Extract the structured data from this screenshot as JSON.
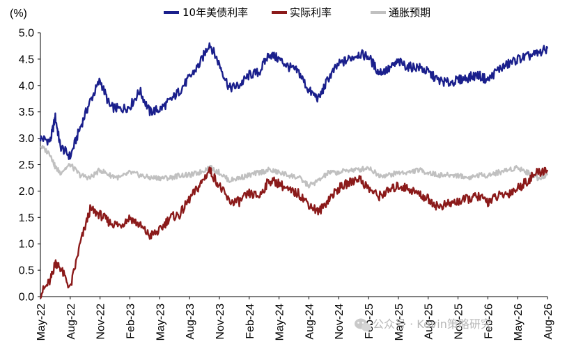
{
  "chart_data": {
    "type": "line",
    "unit_label": "(%)",
    "ylim": [
      0.0,
      5.0
    ],
    "y_ticks": [
      "0.0",
      "0.5",
      "1.0",
      "1.5",
      "2.0",
      "2.5",
      "3.0",
      "3.5",
      "4.0",
      "4.5",
      "5.0"
    ],
    "x_range": [
      "2022-05",
      "2026-08"
    ],
    "x_ticks": [
      "May-22",
      "Aug-22",
      "Nov-22",
      "Feb-23",
      "May-23",
      "Aug-23",
      "Nov-23",
      "Feb-24",
      "May-24",
      "Aug-24",
      "Nov-24",
      "Feb-25",
      "May-25",
      "Aug-25",
      "Nov-25",
      "Feb-26",
      "May-26",
      "Aug-26"
    ],
    "legend_position": "top-center",
    "grid": false,
    "series": [
      {
        "name": "10年美债利率",
        "color": "#1a1f8c",
        "points": [
          [
            "2022-05",
            3.0
          ],
          [
            "2022-06",
            2.95
          ],
          [
            "2022-06",
            3.4
          ],
          [
            "2022-07",
            2.85
          ],
          [
            "2022-08",
            2.65
          ],
          [
            "2022-09",
            3.2
          ],
          [
            "2022-10",
            3.7
          ],
          [
            "2022-11",
            4.1
          ],
          [
            "2022-12",
            3.6
          ],
          [
            "2023-01",
            3.55
          ],
          [
            "2023-02",
            3.6
          ],
          [
            "2023-03",
            3.9
          ],
          [
            "2023-04",
            3.5
          ],
          [
            "2023-05",
            3.55
          ],
          [
            "2023-06",
            3.7
          ],
          [
            "2023-07",
            3.9
          ],
          [
            "2023-08",
            4.15
          ],
          [
            "2023-09",
            4.4
          ],
          [
            "2023-10",
            4.8
          ],
          [
            "2023-11",
            4.4
          ],
          [
            "2023-12",
            3.95
          ],
          [
            "2024-01",
            4.0
          ],
          [
            "2024-02",
            4.2
          ],
          [
            "2024-03",
            4.25
          ],
          [
            "2024-04",
            4.6
          ],
          [
            "2024-05",
            4.5
          ],
          [
            "2024-06",
            4.35
          ],
          [
            "2024-07",
            4.25
          ],
          [
            "2024-08",
            3.9
          ],
          [
            "2024-09",
            3.75
          ],
          [
            "2024-10",
            4.15
          ],
          [
            "2024-11",
            4.4
          ],
          [
            "2024-12",
            4.5
          ],
          [
            "2025-01",
            4.6
          ],
          [
            "2025-02",
            4.55
          ],
          [
            "2025-03",
            4.25
          ],
          [
            "2025-04",
            4.3
          ],
          [
            "2025-05",
            4.45
          ],
          [
            "2025-06",
            4.35
          ],
          [
            "2025-07",
            4.35
          ],
          [
            "2025-08",
            4.25
          ],
          [
            "2025-09",
            4.1
          ],
          [
            "2025-10",
            4.05
          ],
          [
            "2025-11",
            4.1
          ],
          [
            "2025-12",
            4.15
          ],
          [
            "2026-01",
            4.2
          ],
          [
            "2026-02",
            4.1
          ],
          [
            "2026-03",
            4.3
          ],
          [
            "2026-04",
            4.4
          ],
          [
            "2026-05",
            4.5
          ],
          [
            "2026-06",
            4.55
          ],
          [
            "2026-07",
            4.6
          ],
          [
            "2026-08",
            4.7
          ]
        ]
      },
      {
        "name": "实际利率",
        "color": "#8b1a1a",
        "points": [
          [
            "2022-05",
            0.05
          ],
          [
            "2022-06",
            0.3
          ],
          [
            "2022-06",
            0.65
          ],
          [
            "2022-07",
            0.55
          ],
          [
            "2022-08",
            0.15
          ],
          [
            "2022-09",
            1.0
          ],
          [
            "2022-10",
            1.65
          ],
          [
            "2022-11",
            1.55
          ],
          [
            "2022-12",
            1.4
          ],
          [
            "2023-01",
            1.35
          ],
          [
            "2023-02",
            1.5
          ],
          [
            "2023-03",
            1.35
          ],
          [
            "2023-04",
            1.15
          ],
          [
            "2023-05",
            1.25
          ],
          [
            "2023-06",
            1.5
          ],
          [
            "2023-07",
            1.55
          ],
          [
            "2023-08",
            1.85
          ],
          [
            "2023-09",
            2.1
          ],
          [
            "2023-10",
            2.4
          ],
          [
            "2023-11",
            2.1
          ],
          [
            "2023-12",
            1.8
          ],
          [
            "2024-01",
            1.8
          ],
          [
            "2024-02",
            1.95
          ],
          [
            "2024-03",
            1.9
          ],
          [
            "2024-04",
            2.2
          ],
          [
            "2024-05",
            2.15
          ],
          [
            "2024-06",
            2.0
          ],
          [
            "2024-07",
            1.95
          ],
          [
            "2024-08",
            1.75
          ],
          [
            "2024-09",
            1.6
          ],
          [
            "2024-10",
            1.85
          ],
          [
            "2024-11",
            2.05
          ],
          [
            "2024-12",
            2.15
          ],
          [
            "2025-01",
            2.25
          ],
          [
            "2025-02",
            2.05
          ],
          [
            "2025-03",
            1.9
          ],
          [
            "2025-04",
            2.0
          ],
          [
            "2025-05",
            2.1
          ],
          [
            "2025-06",
            2.05
          ],
          [
            "2025-07",
            1.95
          ],
          [
            "2025-08",
            1.85
          ],
          [
            "2025-09",
            1.7
          ],
          [
            "2025-10",
            1.75
          ],
          [
            "2025-11",
            1.8
          ],
          [
            "2025-12",
            1.85
          ],
          [
            "2026-01",
            1.9
          ],
          [
            "2026-02",
            1.8
          ],
          [
            "2026-03",
            1.9
          ],
          [
            "2026-04",
            1.95
          ],
          [
            "2026-05",
            2.05
          ],
          [
            "2026-06",
            2.2
          ],
          [
            "2026-07",
            2.35
          ],
          [
            "2026-08",
            2.4
          ]
        ]
      },
      {
        "name": "通胀预期",
        "color": "#c0c0c0",
        "points": [
          [
            "2022-05",
            2.85
          ],
          [
            "2022-06",
            2.7
          ],
          [
            "2022-06",
            2.45
          ],
          [
            "2022-07",
            2.35
          ],
          [
            "2022-08",
            2.5
          ],
          [
            "2022-09",
            2.3
          ],
          [
            "2022-10",
            2.25
          ],
          [
            "2022-11",
            2.4
          ],
          [
            "2022-12",
            2.3
          ],
          [
            "2023-01",
            2.25
          ],
          [
            "2023-02",
            2.35
          ],
          [
            "2023-03",
            2.3
          ],
          [
            "2023-04",
            2.25
          ],
          [
            "2023-05",
            2.25
          ],
          [
            "2023-06",
            2.25
          ],
          [
            "2023-07",
            2.3
          ],
          [
            "2023-08",
            2.3
          ],
          [
            "2023-09",
            2.35
          ],
          [
            "2023-10",
            2.45
          ],
          [
            "2023-11",
            2.35
          ],
          [
            "2023-12",
            2.2
          ],
          [
            "2024-01",
            2.25
          ],
          [
            "2024-02",
            2.3
          ],
          [
            "2024-03",
            2.35
          ],
          [
            "2024-04",
            2.4
          ],
          [
            "2024-05",
            2.35
          ],
          [
            "2024-06",
            2.3
          ],
          [
            "2024-07",
            2.25
          ],
          [
            "2024-08",
            2.1
          ],
          [
            "2024-09",
            2.2
          ],
          [
            "2024-10",
            2.35
          ],
          [
            "2024-11",
            2.35
          ],
          [
            "2024-12",
            2.4
          ],
          [
            "2025-01",
            2.4
          ],
          [
            "2025-02",
            2.45
          ],
          [
            "2025-03",
            2.3
          ],
          [
            "2025-04",
            2.3
          ],
          [
            "2025-05",
            2.35
          ],
          [
            "2025-06",
            2.35
          ],
          [
            "2025-07",
            2.4
          ],
          [
            "2025-08",
            2.35
          ],
          [
            "2025-09",
            2.3
          ],
          [
            "2025-10",
            2.3
          ],
          [
            "2025-11",
            2.3
          ],
          [
            "2025-12",
            2.25
          ],
          [
            "2026-01",
            2.3
          ],
          [
            "2026-02",
            2.3
          ],
          [
            "2026-03",
            2.35
          ],
          [
            "2026-04",
            2.4
          ],
          [
            "2026-05",
            2.45
          ],
          [
            "2026-06",
            2.35
          ],
          [
            "2026-07",
            2.25
          ],
          [
            "2026-08",
            2.3
          ]
        ]
      }
    ]
  },
  "watermark": {
    "icon": "wechat-icon",
    "text": "公众号 · Kevin策略研究"
  }
}
